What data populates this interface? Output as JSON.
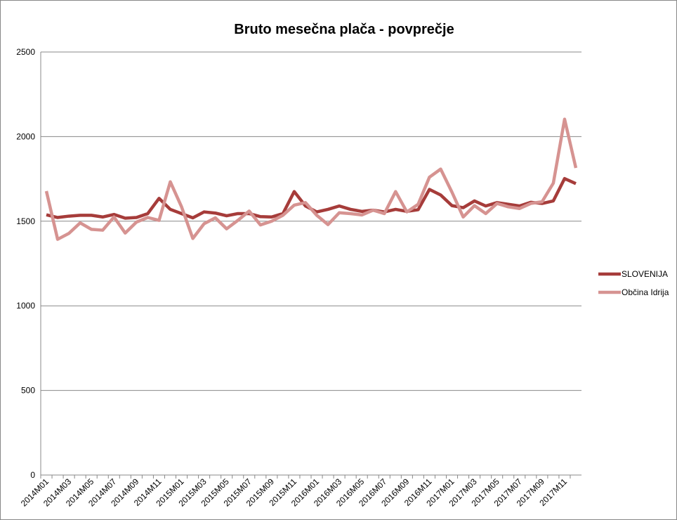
{
  "chart_data": {
    "type": "line",
    "title": "Bruto mesečna plača - povprečje",
    "categories": [
      "2014M01",
      null,
      "2014M03",
      null,
      "2014M05",
      null,
      "2014M07",
      null,
      "2014M09",
      null,
      "2014M11",
      null,
      "2015M01",
      null,
      "2015M03",
      null,
      "2015M05",
      null,
      "2015M07",
      null,
      "2015M09",
      null,
      "2015M11",
      null,
      "2016M01",
      null,
      "2016M03",
      null,
      "2016M05",
      null,
      "2016M07",
      null,
      "2016M09",
      null,
      "2016M11",
      null,
      "2017M01",
      null,
      "2017M03",
      null,
      "2017M05",
      null,
      "2017M07",
      null,
      "2017M09",
      null,
      "2017M11",
      null
    ],
    "series": [
      {
        "name": "SLOVENIJA",
        "color": "#a63c3a",
        "values": [
          1538,
          1522,
          1530,
          1535,
          1535,
          1525,
          1540,
          1518,
          1522,
          1545,
          1635,
          1570,
          1545,
          1520,
          1555,
          1548,
          1532,
          1545,
          1545,
          1527,
          1525,
          1545,
          1675,
          1590,
          1555,
          1570,
          1590,
          1570,
          1558,
          1565,
          1555,
          1570,
          1558,
          1568,
          1688,
          1655,
          1592,
          1580,
          1620,
          1590,
          1610,
          1600,
          1590,
          1612,
          1605,
          1620,
          1752,
          1722
        ]
      },
      {
        "name": "Občina Idrija",
        "color": "#d69391",
        "values": [
          1678,
          1393,
          1428,
          1490,
          1452,
          1447,
          1525,
          1430,
          1495,
          1522,
          1505,
          1733,
          1585,
          1398,
          1485,
          1520,
          1455,
          1505,
          1560,
          1478,
          1500,
          1535,
          1595,
          1610,
          1535,
          1480,
          1550,
          1545,
          1537,
          1565,
          1545,
          1675,
          1555,
          1600,
          1760,
          1808,
          1672,
          1525,
          1592,
          1545,
          1605,
          1585,
          1575,
          1605,
          1615,
          1725,
          2103,
          1815
        ]
      }
    ],
    "ylim": [
      0,
      2500
    ],
    "yticks": [
      0,
      500,
      1000,
      1500,
      2000,
      2500
    ],
    "grid": true,
    "legend": "right"
  }
}
